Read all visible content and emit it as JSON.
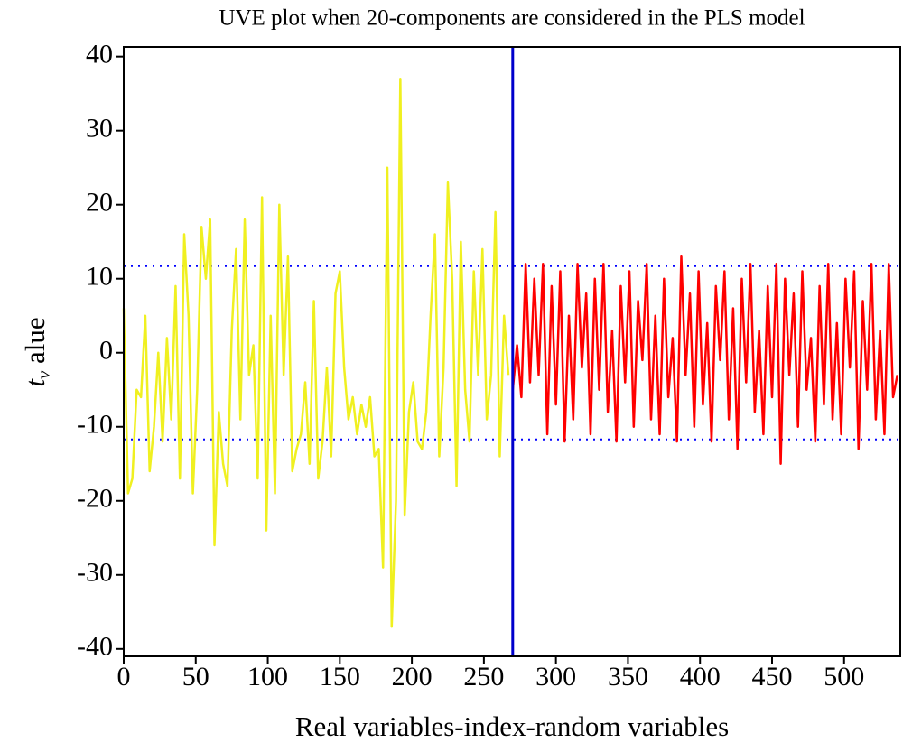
{
  "chart_data": {
    "type": "line",
    "title": "UVE plot when 20-components are considered in the PLS model",
    "xlabel": "Real variables-index-random variables",
    "ylabel": [
      "t",
      "v",
      " alue"
    ],
    "xlim": [
      0,
      539
    ],
    "ylim": [
      -41,
      41.3
    ],
    "xticks": [
      0,
      50,
      100,
      150,
      200,
      250,
      300,
      350,
      400,
      450,
      500
    ],
    "yticks": [
      -40,
      -30,
      -20,
      -10,
      0,
      10,
      20,
      30,
      40
    ],
    "hlines": [
      11.7,
      -11.7
    ],
    "hline_color": "#0000ff",
    "vline": 270,
    "vline_color": "#0000cc",
    "series": [
      {
        "color": "#f0f020",
        "x": [
          0,
          3,
          6,
          9,
          12,
          15,
          18,
          21,
          24,
          27,
          30,
          33,
          36,
          39,
          42,
          45,
          48,
          51,
          54,
          57,
          60,
          63,
          66,
          69,
          72,
          75,
          78,
          81,
          84,
          87,
          90,
          93,
          96,
          99,
          102,
          105,
          108,
          111,
          114,
          117,
          120,
          123,
          126,
          129,
          132,
          135,
          138,
          141,
          144,
          147,
          150,
          153,
          156,
          159,
          162,
          165,
          168,
          171,
          174,
          177,
          180,
          183,
          186,
          189,
          192,
          195,
          198,
          201,
          204,
          207,
          210,
          213,
          216,
          219,
          222,
          225,
          228,
          231,
          234,
          237,
          240,
          243,
          246,
          249,
          252,
          255,
          258,
          261,
          264,
          267
        ],
        "values": [
          6,
          -19,
          -17,
          -5,
          -6,
          5,
          -16,
          -10,
          0,
          -12,
          2,
          -9,
          9,
          -17,
          16,
          5,
          -19,
          -5,
          17,
          10,
          18,
          -26,
          -8,
          -15,
          -18,
          3,
          14,
          -9,
          18,
          -3,
          1,
          -17,
          21,
          -24,
          5,
          -19,
          20,
          -3,
          13,
          -16,
          -13,
          -11,
          -4,
          -15,
          7,
          -17,
          -12,
          -2,
          -14,
          8,
          11,
          -2,
          -9,
          -6,
          -11,
          -7,
          -10,
          -6,
          -14,
          -13,
          -29,
          25,
          -37,
          -20,
          37,
          -22,
          -8,
          -4,
          -12,
          -13,
          -8,
          5,
          16,
          -14,
          -2,
          23,
          10,
          -18,
          15,
          -5,
          -12,
          11,
          -3,
          14,
          -9,
          -3,
          19,
          -14,
          5,
          -3
        ]
      },
      {
        "color": "#ff0000",
        "x": [
          270,
          273,
          276,
          279,
          282,
          285,
          288,
          291,
          294,
          297,
          300,
          303,
          306,
          309,
          312,
          315,
          318,
          321,
          324,
          327,
          330,
          333,
          336,
          339,
          342,
          345,
          348,
          351,
          354,
          357,
          360,
          363,
          366,
          369,
          372,
          375,
          378,
          381,
          384,
          387,
          390,
          393,
          396,
          399,
          402,
          405,
          408,
          411,
          414,
          417,
          420,
          423,
          426,
          429,
          432,
          435,
          438,
          441,
          444,
          447,
          450,
          453,
          456,
          459,
          462,
          465,
          468,
          471,
          474,
          477,
          480,
          483,
          486,
          489,
          492,
          495,
          498,
          501,
          504,
          507,
          510,
          513,
          516,
          519,
          522,
          525,
          528,
          531,
          534,
          537
        ],
        "values": [
          -5,
          1,
          -6,
          12,
          -4,
          10,
          -3,
          12,
          -11,
          9,
          -7,
          11,
          -12,
          5,
          -9,
          12,
          -2,
          8,
          -11,
          10,
          -5,
          12,
          -8,
          3,
          -12,
          9,
          -4,
          11,
          -10,
          7,
          -1,
          12,
          -9,
          5,
          -11,
          10,
          -6,
          2,
          -12,
          13,
          -3,
          8,
          -10,
          11,
          -7,
          4,
          -12,
          9,
          -1,
          11,
          -9,
          6,
          -13,
          10,
          -4,
          12,
          -8,
          3,
          -11,
          9,
          -6,
          12,
          -15,
          10,
          -3,
          8,
          -10,
          11,
          -5,
          2,
          -12,
          9,
          -7,
          12,
          -9,
          4,
          -11,
          10,
          -2,
          11,
          -13,
          7,
          -5,
          12,
          -9,
          3,
          -11,
          12,
          -6,
          -3
        ]
      }
    ]
  }
}
